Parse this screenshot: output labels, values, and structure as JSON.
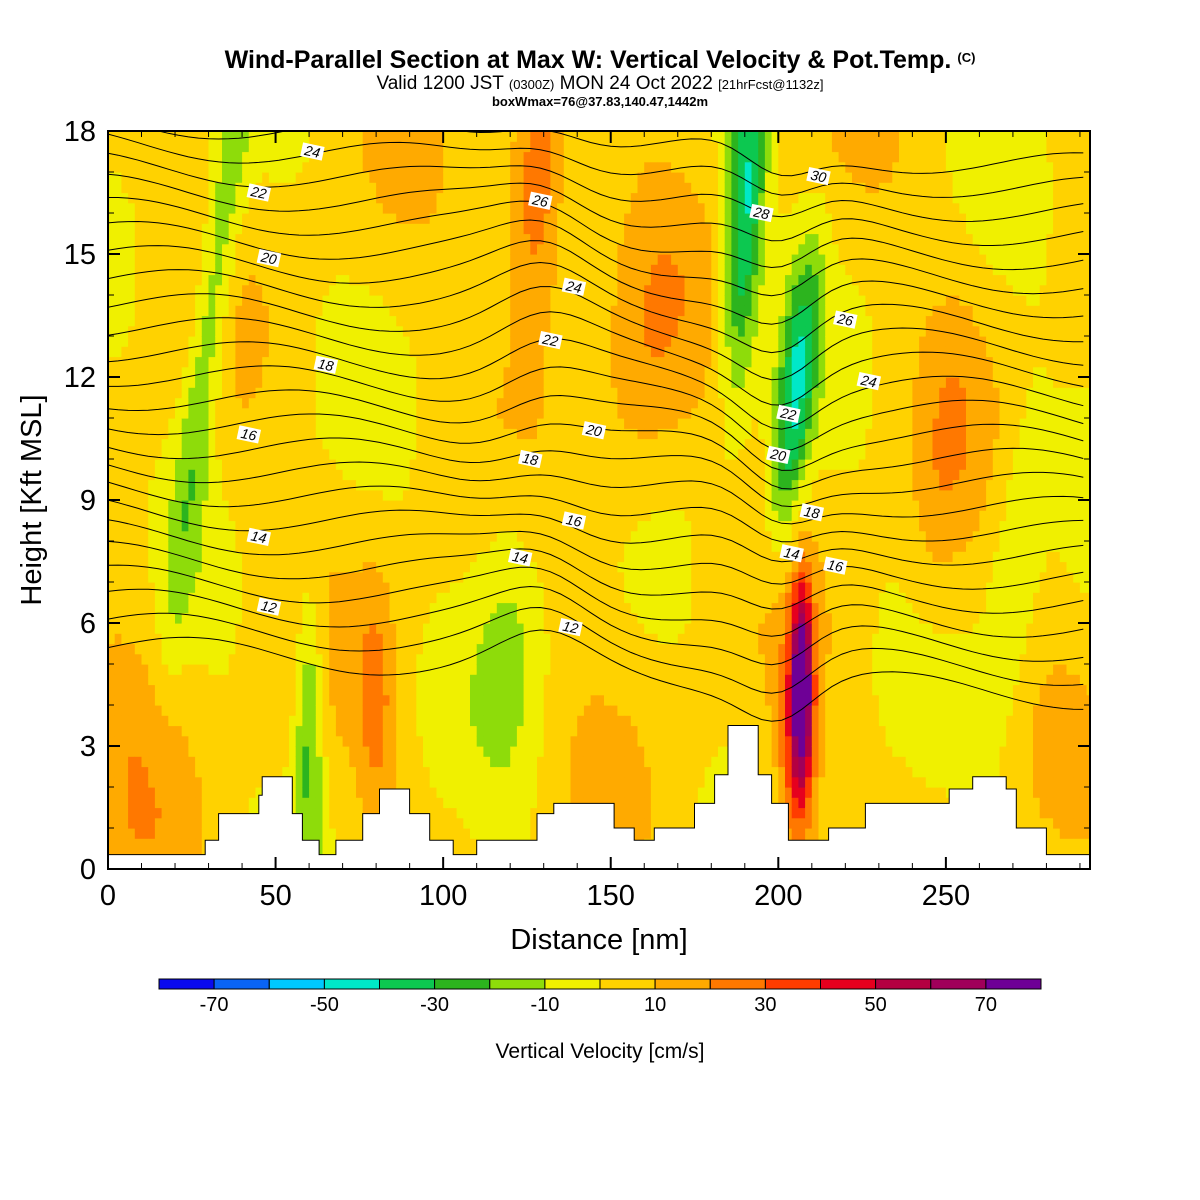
{
  "title": {
    "main": "Wind-Parallel Section at Max W: Vertical Velocity & Pot.Temp.",
    "copyright": "(C)",
    "valid_prefix": "Valid 1200 JST",
    "valid_zulu": "(0300Z)",
    "valid_date": "MON 24 Oct 2022",
    "forecast": "[21hrFcst@1132z]",
    "box": "boxWmax=76@37.83,140.47,1442m"
  },
  "colors": {
    "frame": "#000000",
    "terrain": "#ffffff",
    "contour": "#000000"
  },
  "chart_data": {
    "type": "heatmap",
    "xlabel": "Distance [nm]",
    "ylabel": "Height [Kft MSL]",
    "xlim": [
      0,
      293
    ],
    "ylim": [
      0,
      18
    ],
    "x_ticks": [
      0,
      50,
      100,
      150,
      200,
      250
    ],
    "y_ticks": [
      0,
      3,
      6,
      9,
      12,
      15,
      18
    ],
    "colorbar": {
      "label": "Vertical Velocity [cm/s]",
      "bins": [
        -80,
        -70,
        -60,
        -50,
        -40,
        -30,
        -20,
        -10,
        0,
        10,
        20,
        30,
        40,
        50,
        60,
        70,
        80
      ],
      "tick_values": [
        -70,
        -50,
        -30,
        -10,
        10,
        30,
        50,
        70
      ],
      "tick_labels": [
        "-70",
        "-50",
        "-30",
        "-10",
        "10",
        "30",
        "50",
        "70"
      ],
      "colors": [
        "#0a0aee",
        "#0a64f5",
        "#00c8ff",
        "#00e8c8",
        "#0cc850",
        "#2cb41e",
        "#8edc0a",
        "#f0f000",
        "#ffd200",
        "#ffaa00",
        "#ff7800",
        "#ff3c00",
        "#e6001e",
        "#b40041",
        "#a0005a",
        "#6e0096"
      ]
    },
    "terrain_profile": [
      [
        0,
        0.35
      ],
      [
        29,
        0.35
      ],
      [
        29,
        0.7
      ],
      [
        33,
        0.7
      ],
      [
        33,
        1.35
      ],
      [
        45,
        1.35
      ],
      [
        45,
        1.8
      ],
      [
        46,
        1.8
      ],
      [
        46,
        2.25
      ],
      [
        55,
        2.25
      ],
      [
        55,
        1.35
      ],
      [
        58,
        1.35
      ],
      [
        58,
        0.7
      ],
      [
        63,
        0.7
      ],
      [
        63,
        0.35
      ],
      [
        68,
        0.35
      ],
      [
        68,
        0.7
      ],
      [
        76,
        0.7
      ],
      [
        76,
        1.35
      ],
      [
        81,
        1.35
      ],
      [
        81,
        1.95
      ],
      [
        90,
        1.95
      ],
      [
        90,
        1.35
      ],
      [
        96,
        1.35
      ],
      [
        96,
        0.7
      ],
      [
        103,
        0.7
      ],
      [
        103,
        0.35
      ],
      [
        110,
        0.35
      ],
      [
        110,
        0.7
      ],
      [
        128,
        0.7
      ],
      [
        128,
        1.35
      ],
      [
        133,
        1.35
      ],
      [
        133,
        1.6
      ],
      [
        151,
        1.6
      ],
      [
        151,
        1.0
      ],
      [
        157,
        1.0
      ],
      [
        157,
        0.7
      ],
      [
        163,
        0.7
      ],
      [
        163,
        1.0
      ],
      [
        175,
        1.0
      ],
      [
        175,
        1.6
      ],
      [
        181,
        1.6
      ],
      [
        181,
        2.3
      ],
      [
        185,
        2.3
      ],
      [
        185,
        3.5
      ],
      [
        194,
        3.5
      ],
      [
        194,
        2.3
      ],
      [
        198,
        2.3
      ],
      [
        198,
        1.6
      ],
      [
        203,
        1.6
      ],
      [
        203,
        0.7
      ],
      [
        215,
        0.7
      ],
      [
        215,
        1.0
      ],
      [
        226,
        1.0
      ],
      [
        226,
        1.6
      ],
      [
        251,
        1.6
      ],
      [
        251,
        1.95
      ],
      [
        258,
        1.95
      ],
      [
        258,
        2.25
      ],
      [
        268,
        2.25
      ],
      [
        268,
        1.95
      ],
      [
        271,
        1.95
      ],
      [
        271,
        1.0
      ],
      [
        280,
        1.0
      ],
      [
        280,
        0.35
      ],
      [
        293,
        0.35
      ]
    ],
    "isentrope_labels": [
      {
        "x": 61,
        "y": 17.5,
        "text": "24"
      },
      {
        "x": 45,
        "y": 16.5,
        "text": "22"
      },
      {
        "x": 48,
        "y": 14.9,
        "text": "20"
      },
      {
        "x": 65,
        "y": 12.3,
        "text": "18"
      },
      {
        "x": 42,
        "y": 10.6,
        "text": "16"
      },
      {
        "x": 45,
        "y": 8.1,
        "text": "14"
      },
      {
        "x": 48,
        "y": 6.4,
        "text": "12"
      },
      {
        "x": 129,
        "y": 16.3,
        "text": "26"
      },
      {
        "x": 139,
        "y": 14.2,
        "text": "24"
      },
      {
        "x": 132,
        "y": 12.9,
        "text": "22"
      },
      {
        "x": 145,
        "y": 10.7,
        "text": "20"
      },
      {
        "x": 126,
        "y": 10.0,
        "text": "18"
      },
      {
        "x": 139,
        "y": 8.5,
        "text": "16"
      },
      {
        "x": 123,
        "y": 7.6,
        "text": "14"
      },
      {
        "x": 138,
        "y": 5.9,
        "text": "12"
      },
      {
        "x": 212,
        "y": 16.9,
        "text": "30"
      },
      {
        "x": 195,
        "y": 16.0,
        "text": "28"
      },
      {
        "x": 220,
        "y": 13.4,
        "text": "26"
      },
      {
        "x": 227,
        "y": 11.9,
        "text": "24"
      },
      {
        "x": 203,
        "y": 11.1,
        "text": "22"
      },
      {
        "x": 200,
        "y": 10.1,
        "text": "20"
      },
      {
        "x": 210,
        "y": 8.7,
        "text": "18"
      },
      {
        "x": 204,
        "y": 7.7,
        "text": "14"
      },
      {
        "x": 217,
        "y": 7.4,
        "text": "16"
      }
    ],
    "max_w": {
      "x": 207,
      "y": 4.5,
      "value": 76
    }
  }
}
